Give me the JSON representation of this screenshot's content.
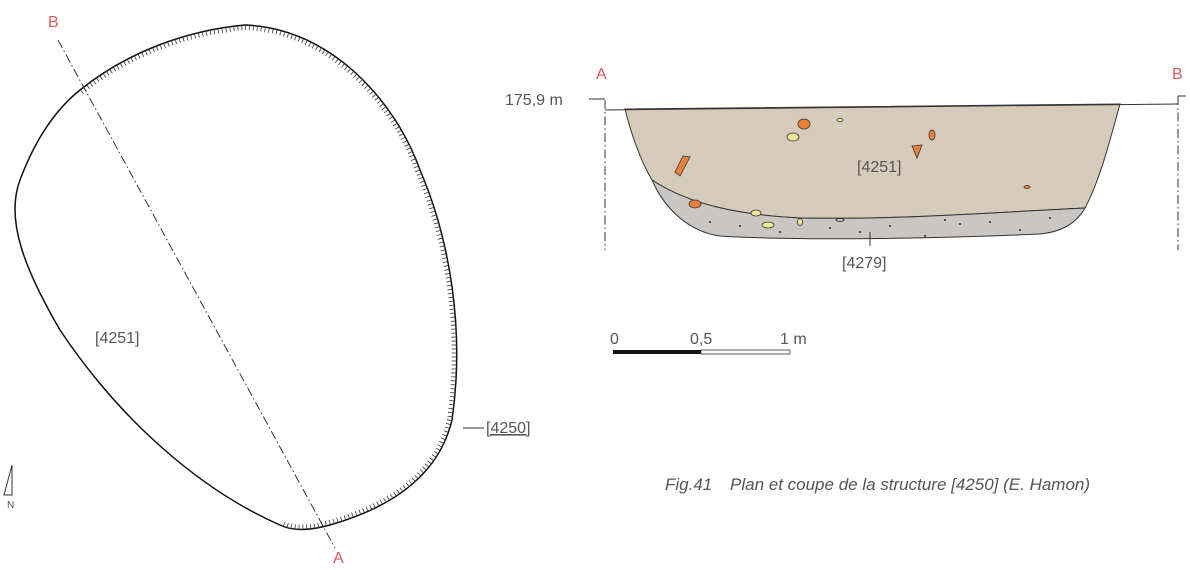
{
  "plan": {
    "section_end_b": "B",
    "section_end_a": "A",
    "fill_label": "[4251]",
    "cut_label": "[4250]",
    "north": "N"
  },
  "section": {
    "end_a": "A",
    "end_b": "B",
    "elevation": "175,9 m",
    "upper_fill": "[4251]",
    "lower_fill": "[4279]"
  },
  "scale": {
    "start": "0",
    "middle": "0,5",
    "end": "1 m"
  },
  "caption": {
    "number": "Fig.41",
    "text": "Plan et coupe de la structure [4250] (E. Hamon)"
  }
}
